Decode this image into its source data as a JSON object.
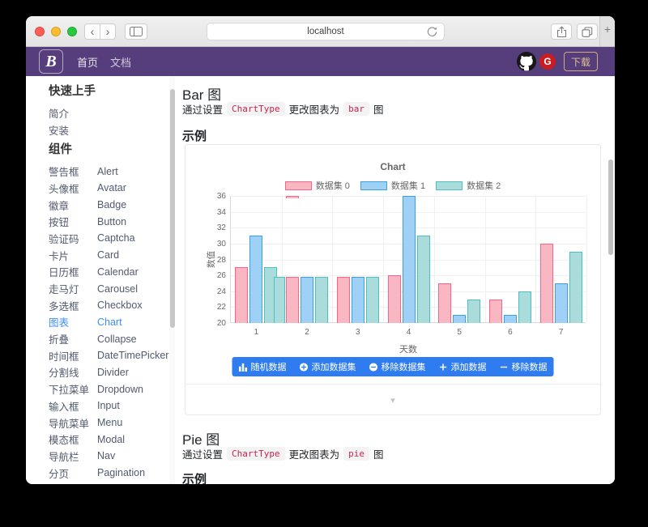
{
  "browser": {
    "url": "localhost",
    "new_tab_label": "+"
  },
  "navbar": {
    "brand": "B",
    "links": [
      "首页",
      "文档"
    ],
    "download_label": "下载",
    "gitee_letter": "G"
  },
  "sidebar": {
    "sections": [
      {
        "heading": "快速上手",
        "items": [
          {
            "zh": "简介",
            "en": ""
          },
          {
            "zh": "安装",
            "en": ""
          }
        ]
      },
      {
        "heading": "组件",
        "items": [
          {
            "zh": "警告框",
            "en": "Alert"
          },
          {
            "zh": "头像框",
            "en": "Avatar"
          },
          {
            "zh": "徽章",
            "en": "Badge"
          },
          {
            "zh": "按钮",
            "en": "Button"
          },
          {
            "zh": "验证码",
            "en": "Captcha"
          },
          {
            "zh": "卡片",
            "en": "Card"
          },
          {
            "zh": "日历框",
            "en": "Calendar"
          },
          {
            "zh": "走马灯",
            "en": "Carousel"
          },
          {
            "zh": "多选框",
            "en": "Checkbox"
          },
          {
            "zh": "图表",
            "en": "Chart",
            "active": true
          },
          {
            "zh": "折叠",
            "en": "Collapse"
          },
          {
            "zh": "时间框",
            "en": "DateTimePicker"
          },
          {
            "zh": "分割线",
            "en": "Divider"
          },
          {
            "zh": "下拉菜单",
            "en": "Dropdown"
          },
          {
            "zh": "输入框",
            "en": "Input"
          },
          {
            "zh": "导航菜单",
            "en": "Menu"
          },
          {
            "zh": "模态框",
            "en": "Modal"
          },
          {
            "zh": "导航栏",
            "en": "Nav"
          },
          {
            "zh": "分页",
            "en": "Pagination"
          }
        ]
      }
    ]
  },
  "main": {
    "bar_section": {
      "title": "Bar 图",
      "desc": [
        {
          "text": "通过设置"
        },
        {
          "code": "ChartType"
        },
        {
          "text": "更改图表为"
        },
        {
          "code": "bar"
        },
        {
          "text": "图"
        }
      ],
      "example_label": "示例"
    },
    "pie_section": {
      "title": "Pie 图",
      "desc": [
        {
          "text": "通过设置"
        },
        {
          "code": "ChartType"
        },
        {
          "text": "更改图表为"
        },
        {
          "code": "pie"
        },
        {
          "text": "图"
        }
      ],
      "example_label": "示例"
    },
    "chart_buttons": [
      {
        "icon": "bar-chart-icon",
        "label": "随机数据"
      },
      {
        "icon": "plus-circle-icon",
        "label": "添加数据集"
      },
      {
        "icon": "minus-circle-icon",
        "label": "移除数据集"
      },
      {
        "icon": "plus-icon",
        "label": "添加数据"
      },
      {
        "icon": "minus-icon",
        "label": "移除数据"
      }
    ],
    "expand_caret": "▾"
  },
  "chart_data": {
    "type": "bar",
    "title": "Chart",
    "categories": [
      "1",
      "2",
      "3",
      "4",
      "5",
      "6",
      "7"
    ],
    "series": [
      {
        "name": "数据集 0",
        "border_color": "#ff6384",
        "fill_color": "#f9b7c4",
        "values": [
          27,
          25.8,
          25.8,
          26,
          25,
          23,
          30
        ]
      },
      {
        "name": "数据集 1",
        "border_color": "#36a2eb",
        "fill_color": "#9fd0f5",
        "values": [
          31,
          25.8,
          25.8,
          36,
          21,
          21,
          25
        ]
      },
      {
        "name": "数据集 2",
        "border_color": "#4bc0c0",
        "fill_color": "#a9dcda",
        "values": [
          27,
          25.8,
          25.8,
          31,
          23,
          24,
          29
        ]
      }
    ],
    "xlabel": "天数",
    "ylabel": "数值",
    "ylim": [
      20,
      36
    ],
    "ytick_step": 2,
    "grid": true,
    "legend_position": "top",
    "render_artifacts": [
      {
        "kind": "step-overlap",
        "series": 2,
        "category_index": 0,
        "value": 25.8
      },
      {
        "kind": "top-remnant",
        "series": 0,
        "category_index": 1,
        "value": 36
      }
    ]
  },
  "colors": {
    "navbar_purple": "#563d7c",
    "accent_blue": "#2e7cf0",
    "link_blue": "#3e8ef7",
    "code_pink": "#c7254e"
  }
}
